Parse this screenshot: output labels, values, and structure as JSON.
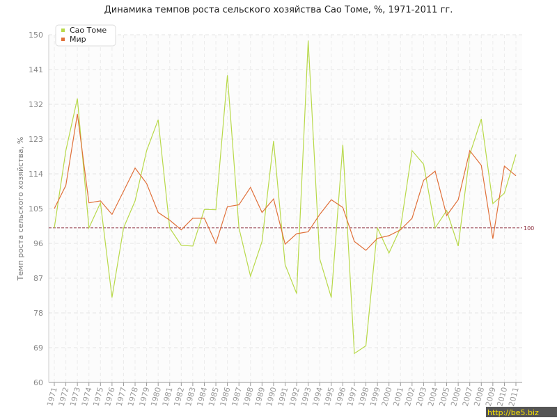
{
  "chart_data": {
    "type": "line",
    "title": "Динамика темпов роста сельского хозяйства Сао Томе, %, 1971-2011 гг.",
    "y_label": "Темп роста сельского хозяйства, %",
    "categories": [
      "1971",
      "1972",
      "1973",
      "1974",
      "1975",
      "1976",
      "1977",
      "1978",
      "1979",
      "1980",
      "1981",
      "1982",
      "1983",
      "1984",
      "1985",
      "1986",
      "1987",
      "1988",
      "1989",
      "1990",
      "1991",
      "1992",
      "1993",
      "1994",
      "1995",
      "1996",
      "1997",
      "1998",
      "1999",
      "2000",
      "2001",
      "2002",
      "2003",
      "2004",
      "2005",
      "2006",
      "2007",
      "2008",
      "2009",
      "2010",
      "2011"
    ],
    "series": [
      {
        "name": "Сао Томе",
        "color": "#b8d94a",
        "values": [
          100,
          120,
          133.5,
          100,
          106.5,
          82,
          100,
          107,
          120,
          128,
          100,
          95.5,
          95.3,
          104.8,
          104.7,
          139.5,
          100,
          87.5,
          96.5,
          122.5,
          90.5,
          83,
          148.5,
          92,
          82,
          121.5,
          67.5,
          69.5,
          100,
          93.5,
          100,
          120,
          116.5,
          100,
          104.5,
          95.3,
          119,
          128.2,
          106.3,
          109,
          119
        ]
      },
      {
        "name": "Мир",
        "color": "#e0703a",
        "values": [
          105,
          111,
          129.5,
          106.5,
          107,
          103.5,
          109.5,
          115.5,
          111.5,
          104,
          102,
          99.5,
          102.5,
          102.5,
          96,
          105.5,
          106,
          110.5,
          104,
          107.5,
          95.8,
          98.5,
          99,
          103.5,
          107.3,
          105.3,
          96.5,
          94.2,
          97.3,
          98,
          99.5,
          102.5,
          112.3,
          114.7,
          103.2,
          107.3,
          120,
          116.2,
          97.2,
          116,
          113.5
        ]
      }
    ],
    "reference_line": 100,
    "ylim": [
      60,
      150
    ],
    "yticks": [
      60,
      69,
      78,
      87,
      96,
      105,
      114,
      123,
      132,
      141,
      150
    ],
    "grid": true,
    "legend": "top-left",
    "watermark": "http://be5.biz"
  }
}
